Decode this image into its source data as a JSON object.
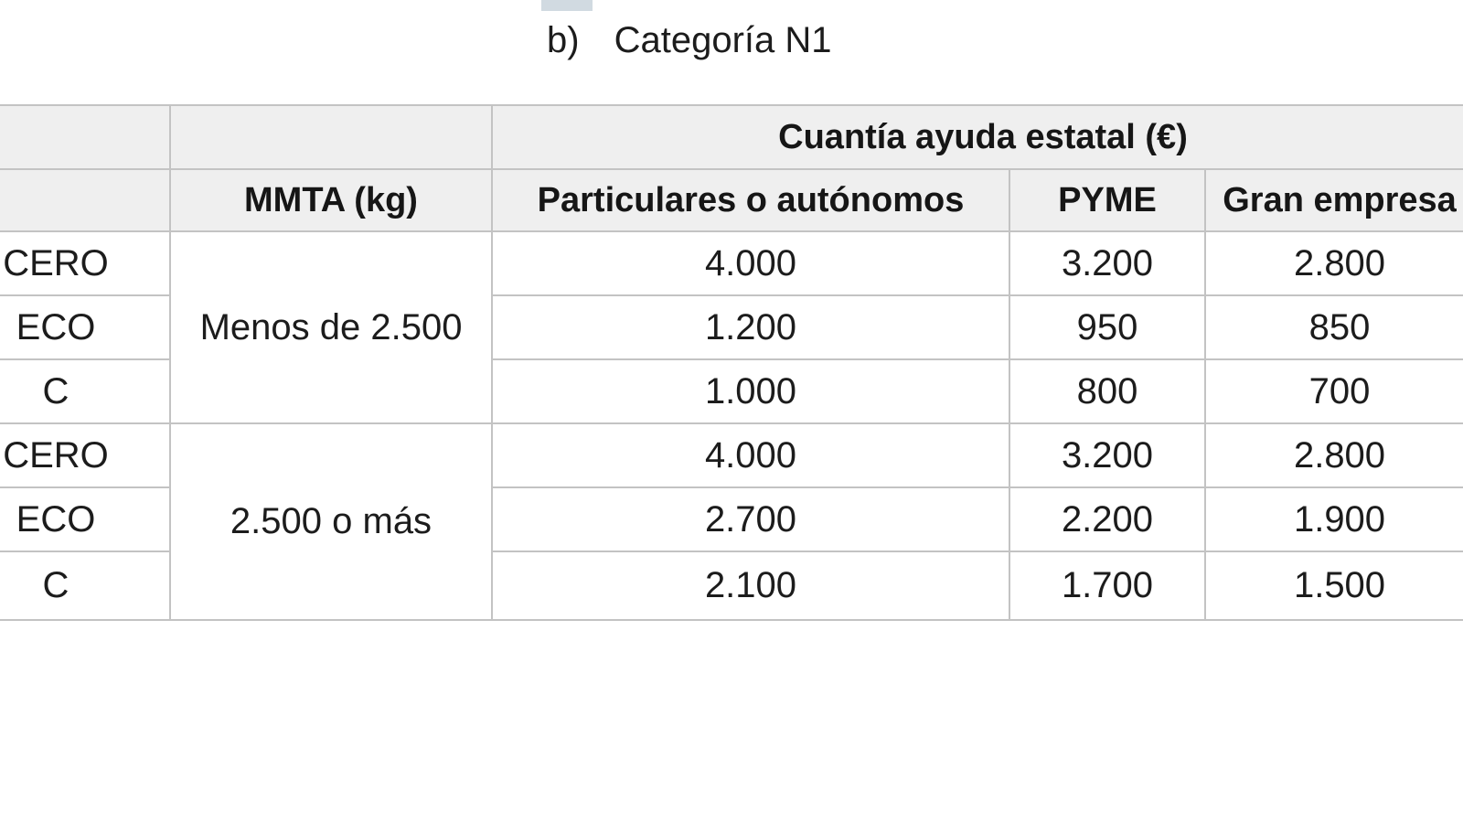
{
  "page": {
    "title_marker": "b)",
    "title_text": "Categoría N1",
    "background_color": "#ffffff"
  },
  "table": {
    "style": {
      "header_bg_color": "#efefef",
      "border_color": "#c3c3c3",
      "text_color": "#1c1c1c"
    },
    "spanning_header": "Cuantía ayuda estatal (€)",
    "columns": [
      {
        "key": "etiqueta",
        "label": ""
      },
      {
        "key": "mmta",
        "label": "MMTA (kg)"
      },
      {
        "key": "particulares",
        "label": "Particulares o autónomos"
      },
      {
        "key": "pyme",
        "label": "PYME"
      },
      {
        "key": "gran_empresa",
        "label": "Gran empresa"
      }
    ],
    "groups": [
      {
        "mmta": "Menos de 2.500",
        "rows": [
          {
            "label": "CERO",
            "particulares": "4.000",
            "pyme": "3.200",
            "gran_empresa": "2.800"
          },
          {
            "label": "ECO",
            "particulares": "1.200",
            "pyme": "950",
            "gran_empresa": "850"
          },
          {
            "label": "C",
            "particulares": "1.000",
            "pyme": "800",
            "gran_empresa": "700"
          }
        ]
      },
      {
        "mmta": "2.500 o más",
        "rows": [
          {
            "label": "CERO",
            "particulares": "4.000",
            "pyme": "3.200",
            "gran_empresa": "2.800"
          },
          {
            "label": "ECO",
            "particulares": "2.700",
            "pyme": "2.200",
            "gran_empresa": "1.900"
          },
          {
            "label": "C",
            "particulares": "2.100",
            "pyme": "1.700",
            "gran_empresa": "1.500"
          }
        ]
      }
    ]
  }
}
